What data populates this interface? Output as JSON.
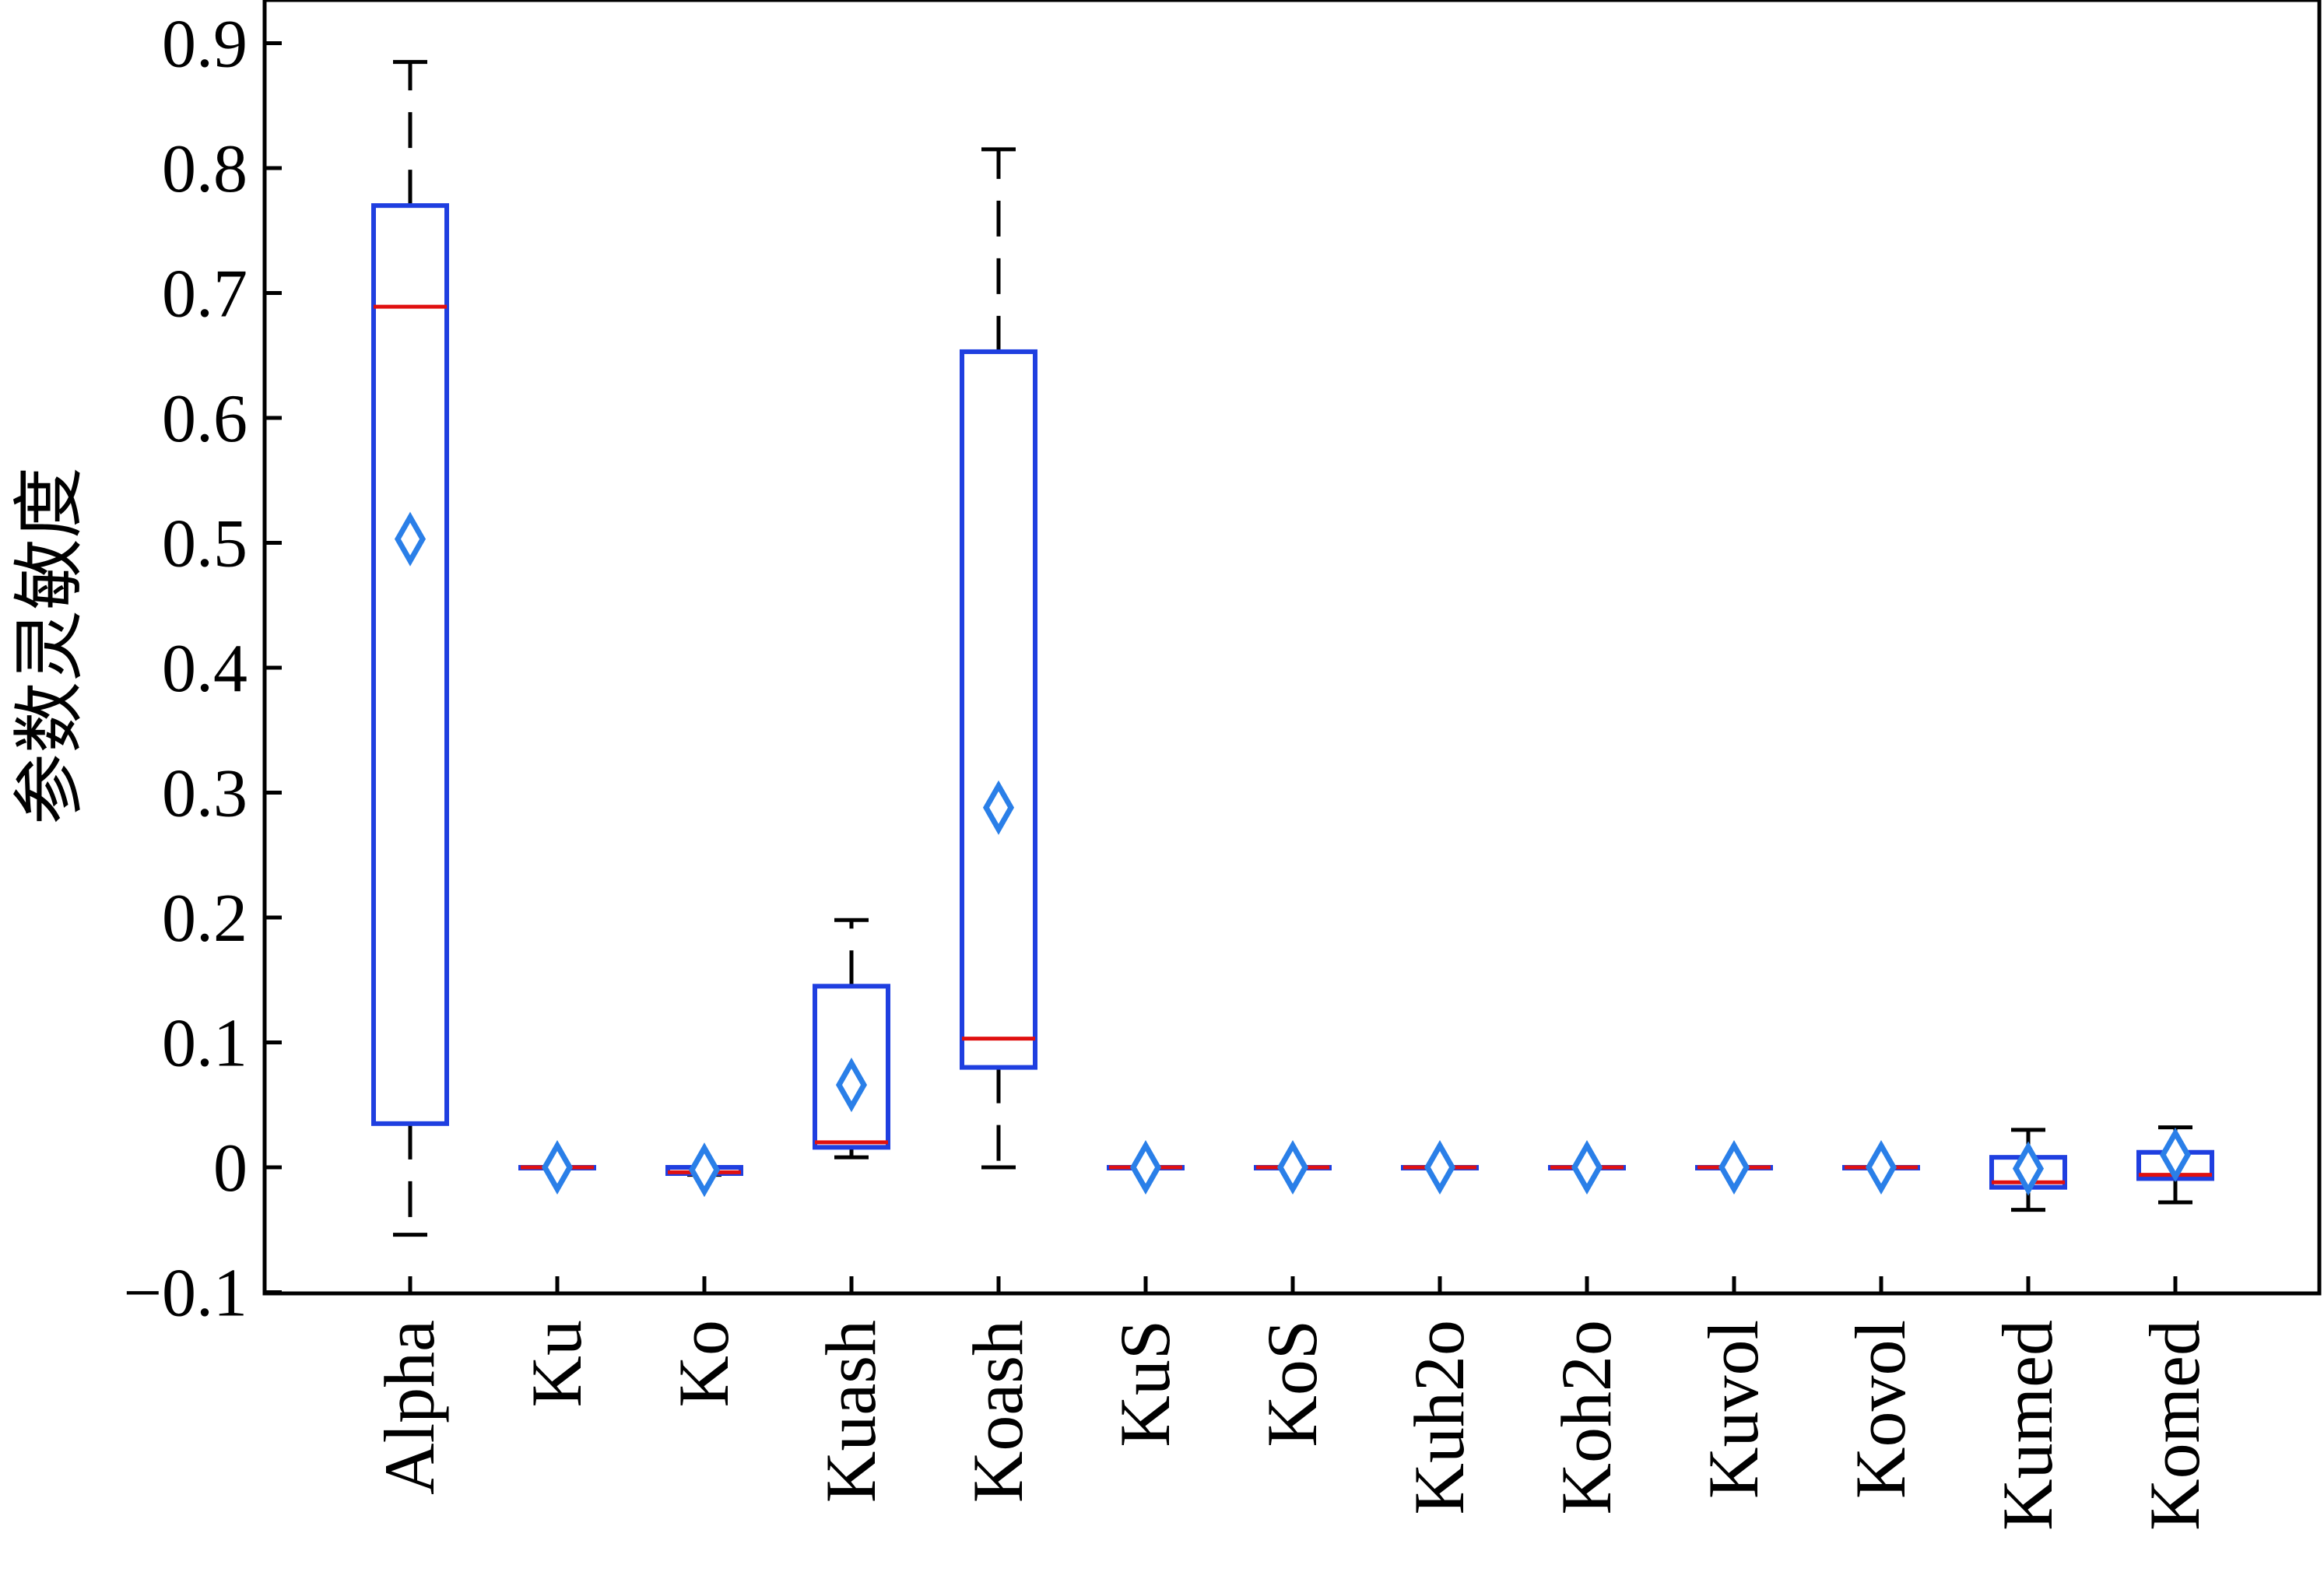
{
  "chart_data": {
    "type": "box",
    "ylabel": "参数灵敏度",
    "xlabel": "",
    "title": "",
    "ylim": [
      -0.1,
      0.93
    ],
    "yticks": [
      -0.1,
      0,
      0.1,
      0.2,
      0.3,
      0.4,
      0.5,
      0.6,
      0.7,
      0.8,
      0.9
    ],
    "ytick_labels": [
      "−0.1",
      "0",
      "0.1",
      "0.2",
      "0.3",
      "0.4",
      "0.5",
      "0.6",
      "0.7",
      "0.8",
      "0.9"
    ],
    "categories": [
      "Alpha",
      "Ku",
      "Ko",
      "Kuash",
      "Koash",
      "KuS",
      "KoS",
      "Kuh2o",
      "Koh2o",
      "Kuvol",
      "Kovol",
      "Kumed",
      "Komed"
    ],
    "boxes": [
      {
        "category": "Alpha",
        "whisker_low": -0.054,
        "q1": 0.035,
        "median": 0.689,
        "q3": 0.77,
        "whisker_high": 0.885,
        "mean": 0.503
      },
      {
        "category": "Ku",
        "whisker_low": 0,
        "q1": 0,
        "median": 0,
        "q3": 0,
        "whisker_high": 0,
        "mean": 0
      },
      {
        "category": "Ko",
        "whisker_low": -0.006,
        "q1": -0.005,
        "median": -0.004,
        "q3": 0.0,
        "whisker_high": 0.0,
        "mean": -0.002
      },
      {
        "category": "Kuash",
        "whisker_low": 0.008,
        "q1": 0.016,
        "median": 0.02,
        "q3": 0.145,
        "whisker_high": 0.198,
        "mean": 0.066
      },
      {
        "category": "Koash",
        "whisker_low": 0,
        "q1": 0.08,
        "median": 0.103,
        "q3": 0.653,
        "whisker_high": 0.815,
        "mean": 0.288
      },
      {
        "category": "KuS",
        "whisker_low": 0,
        "q1": 0,
        "median": 0,
        "q3": 0,
        "whisker_high": 0,
        "mean": 0
      },
      {
        "category": "KoS",
        "whisker_low": 0,
        "q1": 0,
        "median": 0,
        "q3": 0,
        "whisker_high": 0,
        "mean": 0
      },
      {
        "category": "Kuh2o",
        "whisker_low": 0,
        "q1": 0,
        "median": 0,
        "q3": 0,
        "whisker_high": 0,
        "mean": 0
      },
      {
        "category": "Koh2o",
        "whisker_low": 0,
        "q1": 0,
        "median": 0,
        "q3": 0,
        "whisker_high": 0,
        "mean": 0
      },
      {
        "category": "Kuvol",
        "whisker_low": 0,
        "q1": 0,
        "median": 0,
        "q3": 0,
        "whisker_high": 0,
        "mean": 0
      },
      {
        "category": "Kovol",
        "whisker_low": 0,
        "q1": 0,
        "median": 0,
        "q3": 0,
        "whisker_high": 0,
        "mean": 0
      },
      {
        "category": "Kumed",
        "whisker_low": -0.034,
        "q1": -0.016,
        "median": -0.012,
        "q3": 0.008,
        "whisker_high": 0.03,
        "mean": -0.001
      },
      {
        "category": "Komed",
        "whisker_low": -0.028,
        "q1": -0.009,
        "median": -0.006,
        "q3": 0.012,
        "whisker_high": 0.032,
        "mean": 0.01
      }
    ],
    "colors": {
      "box": "#1f3fe0",
      "median": "#e01010",
      "mean_marker": "#2a7fe8",
      "whisker": "#000000",
      "axis": "#000000"
    },
    "grid": false,
    "legend": "none"
  }
}
